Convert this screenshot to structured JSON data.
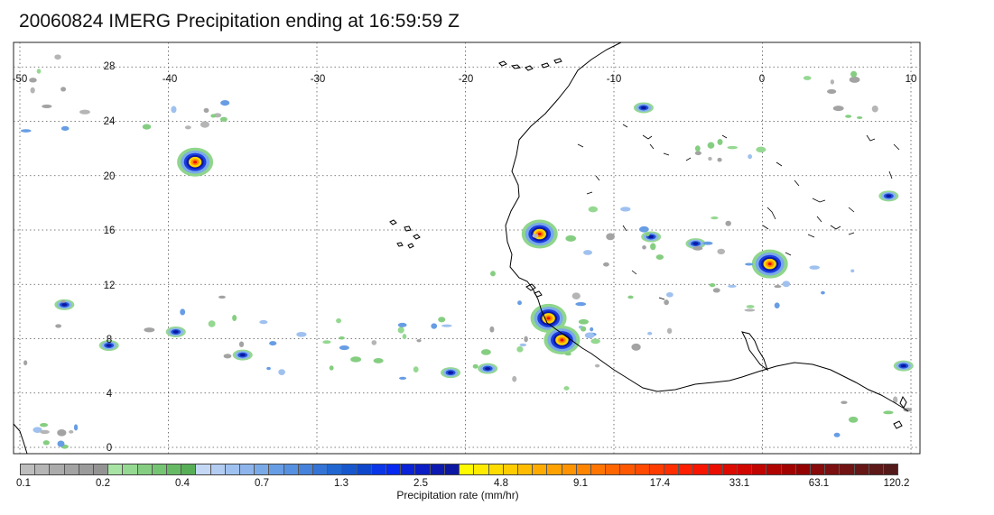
{
  "title": "20060824 IMERG Precipitation ending at 16:59:59 Z",
  "map": {
    "projection": "lat-lon",
    "lon_range": [
      -50,
      10
    ],
    "lat_range": [
      -0.5,
      28.5
    ],
    "gridlines": "dotted",
    "lon_labels": [
      "-50",
      "-40",
      "-30",
      "-20",
      "-10",
      "0",
      "10"
    ],
    "lat_labels": [
      "28",
      "24",
      "20",
      "16",
      "12",
      "8",
      "4",
      "0"
    ],
    "coastline_color": "#000000"
  },
  "precip_systems": [
    {
      "lon": -38.2,
      "lat": 21.0,
      "intensity": "heavy"
    },
    {
      "lon": -15.0,
      "lat": 15.7,
      "intensity": "heavy"
    },
    {
      "lon": -14.4,
      "lat": 9.5,
      "intensity": "heavy"
    },
    {
      "lon": -13.5,
      "lat": 7.9,
      "intensity": "heavy"
    },
    {
      "lon": 0.5,
      "lat": 13.5,
      "intensity": "heavy"
    },
    {
      "lon": 8.5,
      "lat": 18.5,
      "intensity": "moderate"
    },
    {
      "lon": -8.0,
      "lat": 25.0,
      "intensity": "moderate"
    },
    {
      "lon": -7.5,
      "lat": 15.5,
      "intensity": "moderate"
    },
    {
      "lon": -4.5,
      "lat": 15.0,
      "intensity": "moderate"
    },
    {
      "lon": -47.0,
      "lat": 10.5,
      "intensity": "moderate"
    },
    {
      "lon": -44.0,
      "lat": 7.5,
      "intensity": "moderate"
    },
    {
      "lon": -39.5,
      "lat": 8.5,
      "intensity": "moderate"
    },
    {
      "lon": -21.0,
      "lat": 5.5,
      "intensity": "moderate"
    },
    {
      "lon": -18.5,
      "lat": 5.8,
      "intensity": "moderate"
    },
    {
      "lon": -35.0,
      "lat": 6.8,
      "intensity": "moderate"
    },
    {
      "lon": 9.5,
      "lat": 6.0,
      "intensity": "moderate"
    }
  ],
  "colorbar": {
    "title": "Precipitation rate (mm/hr)",
    "labels": [
      "0.1",
      "0.2",
      "0.4",
      "0.7",
      "1.3",
      "2.5",
      "4.8",
      "9.1",
      "17.4",
      "33.1",
      "63.1",
      "120.2"
    ],
    "colors": [
      "#bdbdbd",
      "#b5b5b5",
      "#ababab",
      "#a3a3a3",
      "#9b9b9b",
      "#939393",
      "#a7e3a3",
      "#95d891",
      "#85ce81",
      "#75c472",
      "#66ba64",
      "#58ae57",
      "#c4d7f5",
      "#b2ccf2",
      "#9fc1ef",
      "#8db5ec",
      "#7aa9e8",
      "#679de4",
      "#5690e0",
      "#4582dc",
      "#3374d6",
      "#2266d0",
      "#1757cd",
      "#0e47c9",
      "#0a36e6",
      "#0628f0",
      "#0a22d8",
      "#0b1dc4",
      "#0c1ab2",
      "#0c18a2",
      "#fffa00",
      "#ffeb00",
      "#ffdc00",
      "#ffcc00",
      "#ffbc00",
      "#ffab00",
      "#ffa200",
      "#ff9300",
      "#ff8400",
      "#ff7500",
      "#ff6600",
      "#ff5800",
      "#ff4a00",
      "#ff3c00",
      "#ff2d00",
      "#ff1f00",
      "#f71400",
      "#ea0d00",
      "#dc0a00",
      "#cf0700",
      "#c00500",
      "#b00400",
      "#a10300",
      "#930200",
      "#880a0a",
      "#7c0f0f",
      "#711313",
      "#671616",
      "#5d1818",
      "#541a1a"
    ]
  }
}
